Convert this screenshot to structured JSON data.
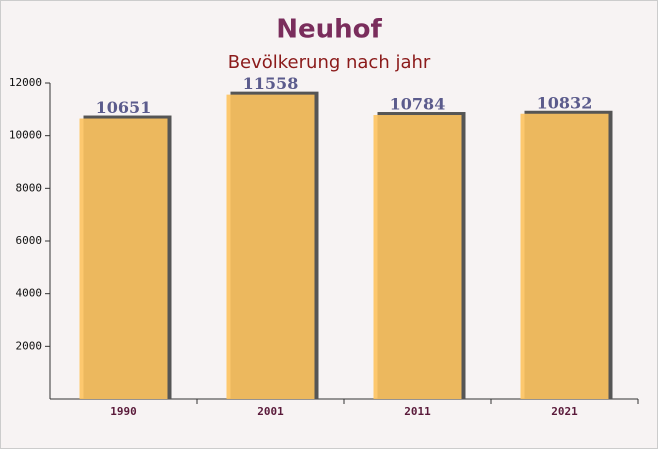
{
  "chart_data": {
    "type": "bar",
    "title": "Neuhof",
    "subtitle": "Bevölkerung nach jahr",
    "categories": [
      "1990",
      "2001",
      "2011",
      "2021"
    ],
    "values": [
      10651,
      11558,
      10784,
      10832
    ],
    "color": "#fdc35f",
    "ylim": [
      0,
      12000
    ],
    "yticks": [
      2000,
      4000,
      6000,
      8000,
      10000,
      12000
    ]
  }
}
